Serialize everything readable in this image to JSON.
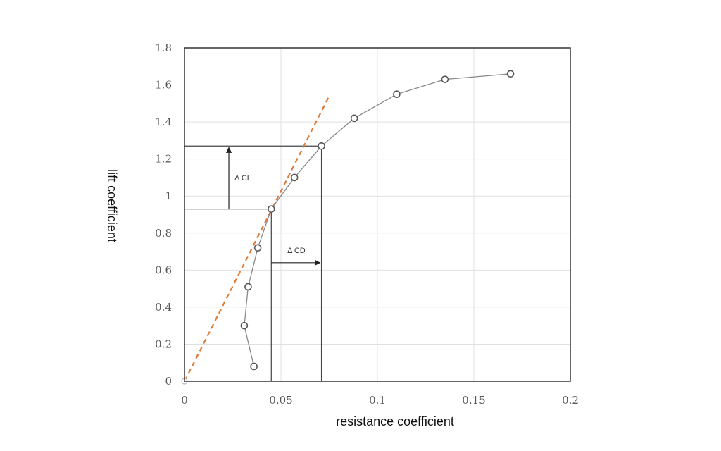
{
  "chart_data": {
    "type": "scatter",
    "xlabel": "resistance coefficient",
    "ylabel": "lift coefficient",
    "xlim": [
      0,
      0.2
    ],
    "ylim": [
      0,
      1.8
    ],
    "x_ticks": [
      "0",
      "0.05",
      "0.1",
      "0.15",
      "0.2"
    ],
    "y_ticks": [
      "0",
      "0.2",
      "0.4",
      "0.6",
      "0.8",
      "1",
      "1.2",
      "1.4",
      "1.6",
      "1.8"
    ],
    "grid": true,
    "series": [
      {
        "color": "#555555",
        "marker": "open-circle",
        "points": [
          {
            "x": 0.036,
            "y": 0.08
          },
          {
            "x": 0.031,
            "y": 0.3
          },
          {
            "x": 0.033,
            "y": 0.51
          },
          {
            "x": 0.038,
            "y": 0.72
          },
          {
            "x": 0.045,
            "y": 0.93
          },
          {
            "x": 0.057,
            "y": 1.1
          },
          {
            "x": 0.071,
            "y": 1.27
          },
          {
            "x": 0.088,
            "y": 1.42
          },
          {
            "x": 0.11,
            "y": 1.55
          },
          {
            "x": 0.135,
            "y": 1.63
          },
          {
            "x": 0.169,
            "y": 1.66
          }
        ]
      }
    ],
    "tangent_line": {
      "color": "#e07b39",
      "style": "dashed",
      "from": {
        "x": 0,
        "y": 0
      },
      "to": {
        "x": 0.075,
        "y": 1.54
      }
    },
    "annotations": [
      {
        "text": "Δ CL",
        "horizontal_lines_y": [
          0.93,
          1.27
        ],
        "arrow": {
          "x": 0.023,
          "from_y": 0.93,
          "to_y": 1.27
        }
      },
      {
        "text": "Δ CD",
        "vertical_lines_x": [
          0.045,
          0.071
        ],
        "arrow": {
          "y": 0.64,
          "from_x": 0.045,
          "to_x": 0.071
        }
      }
    ]
  }
}
